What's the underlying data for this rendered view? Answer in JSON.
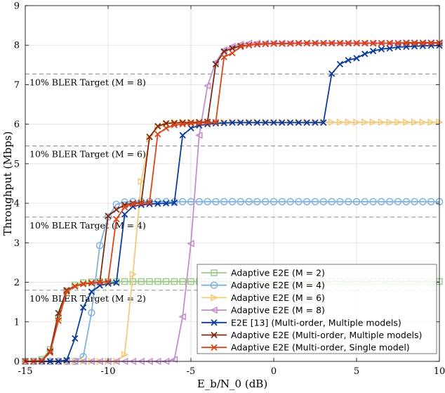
{
  "chart_data": {
    "type": "line",
    "xlabel": "E_b/N_0 (dB)",
    "ylabel": "Throughput (Mbps)",
    "xlim": [
      -15,
      10
    ],
    "ylim": [
      0,
      9
    ],
    "xticks": [
      -15,
      -10,
      -5,
      0,
      5,
      10
    ],
    "yticks": [
      0,
      1,
      2,
      3,
      4,
      5,
      6,
      7,
      8,
      9
    ],
    "xtick_labels": [
      "-15",
      "-10",
      "-5",
      "0",
      "5",
      "10"
    ],
    "ytick_labels": [
      "0",
      "1",
      "2",
      "3",
      "4",
      "5",
      "6",
      "7",
      "8",
      "9"
    ],
    "grid": true,
    "legend_position": "bottom-right",
    "bler_targets": [
      {
        "label": "10% BLER Target (M = 2)",
        "y": 1.8
      },
      {
        "label": "10% BLER Target (M = 4)",
        "y": 3.65
      },
      {
        "label": "10% BLER Target (M = 6)",
        "y": 5.45
      },
      {
        "label": "10% BLER Target (M = 8)",
        "y": 7.27
      }
    ],
    "series": [
      {
        "name": "Adaptive E2E (M = 2)",
        "color": "#9dca86",
        "marker": "square",
        "x": [
          -15,
          -14.5,
          -14,
          -13.5,
          -13,
          -12.5,
          -12,
          -11.5,
          -11,
          -10.5,
          -10,
          -9.5,
          -9,
          -8.5,
          -8,
          -7.5,
          -7,
          -6.5,
          -6,
          -5.5,
          -5,
          -4.5,
          -4,
          -3.5,
          -3,
          -2.5,
          -2,
          -1.5,
          -1,
          -0.5,
          0,
          0.5,
          1,
          1.5,
          2,
          2.5,
          3,
          3.5,
          4,
          4.5,
          5,
          5.5,
          6,
          6.5,
          7,
          7.5,
          8,
          8.5,
          9,
          9.5,
          10
        ],
        "y": [
          0,
          0,
          0.05,
          0.3,
          1.1,
          1.78,
          1.93,
          1.99,
          2.01,
          2.02,
          2.02,
          2.02,
          2.02,
          2.02,
          2.02,
          2.02,
          2.02,
          2.02,
          2.02,
          2.02,
          2.02,
          2.02,
          2.02,
          2.02,
          2.02,
          2.02,
          2.02,
          2.02,
          2.02,
          2.02,
          2.02,
          2.02,
          2.02,
          2.02,
          2.02,
          2.02,
          2.02,
          2.02,
          2.02,
          2.02,
          2.02,
          2.02,
          2.02,
          2.02,
          2.02,
          2.02,
          2.02,
          2.02,
          2.02,
          2.02,
          2.02
        ]
      },
      {
        "name": "Adaptive E2E (M = 4)",
        "color": "#7fb2e0",
        "marker": "circle",
        "x": [
          -15,
          -14.5,
          -14,
          -13.5,
          -13,
          -12.5,
          -12,
          -11.5,
          -11,
          -10.5,
          -10,
          -9.5,
          -9,
          -8.5,
          -8,
          -7.5,
          -7,
          -6.5,
          -6,
          -5.5,
          -5,
          -4.5,
          -4,
          -3.5,
          -3,
          -2.5,
          -2,
          -1.5,
          -1,
          -0.5,
          0,
          0.5,
          1,
          1.5,
          2,
          2.5,
          3,
          3.5,
          4,
          4.5,
          5,
          5.5,
          6,
          6.5,
          7,
          7.5,
          8,
          8.5,
          9,
          9.5,
          10
        ],
        "y": [
          0,
          0,
          0,
          0,
          0,
          0,
          0,
          0.12,
          1.23,
          2.93,
          3.65,
          3.97,
          4.03,
          4.04,
          4.04,
          4.04,
          4.04,
          4.04,
          4.04,
          4.04,
          4.04,
          4.04,
          4.04,
          4.04,
          4.04,
          4.04,
          4.04,
          4.04,
          4.04,
          4.04,
          4.04,
          4.04,
          4.04,
          4.04,
          4.04,
          4.04,
          4.04,
          4.04,
          4.04,
          4.04,
          4.04,
          4.04,
          4.04,
          4.04,
          4.04,
          4.04,
          4.04,
          4.04,
          4.04,
          4.04,
          4.04
        ]
      },
      {
        "name": "Adaptive E2E (M = 6)",
        "color": "#f6c97a",
        "marker": "triangle-right",
        "x": [
          -15,
          -14.5,
          -14,
          -13.5,
          -13,
          -12.5,
          -12,
          -11.5,
          -11,
          -10.5,
          -10,
          -9.5,
          -9,
          -8.5,
          -8,
          -7.5,
          -7,
          -6.5,
          -6,
          -5.5,
          -5,
          -4.5,
          -4,
          -3.5,
          -3,
          -2.5,
          -2,
          -1.5,
          -1,
          -0.5,
          0,
          0.5,
          1,
          1.5,
          2,
          2.5,
          3,
          3.5,
          4,
          4.5,
          5,
          5.5,
          6,
          6.5,
          7,
          7.5,
          8,
          8.5,
          9,
          9.5,
          10
        ],
        "y": [
          0,
          0,
          0,
          0,
          0,
          0,
          0,
          0,
          0,
          0,
          0,
          0,
          0.17,
          2.2,
          4.55,
          5.62,
          5.93,
          6.02,
          6.05,
          6.05,
          6.05,
          6.05,
          6.05,
          6.05,
          6.05,
          6.05,
          6.05,
          6.05,
          6.05,
          6.05,
          6.05,
          6.05,
          6.05,
          6.05,
          6.05,
          6.05,
          6.05,
          6.05,
          6.05,
          6.05,
          6.05,
          6.05,
          6.05,
          6.05,
          6.05,
          6.05,
          6.05,
          6.05,
          6.05,
          6.05,
          6.05
        ]
      },
      {
        "name": "Adaptive E2E (M = 8)",
        "color": "#c38ec9",
        "marker": "triangle-left",
        "x": [
          -15,
          -14.5,
          -14,
          -13.5,
          -13,
          -12.5,
          -12,
          -11.5,
          -11,
          -10.5,
          -10,
          -9.5,
          -9,
          -8.5,
          -8,
          -7.5,
          -7,
          -6.5,
          -6,
          -5.5,
          -5,
          -4.5,
          -4,
          -3.5,
          -3,
          -2.5,
          -2,
          -1.5,
          -1,
          -0.5,
          0,
          0.5,
          1,
          1.5,
          2,
          2.5,
          3,
          3.5,
          4,
          4.5,
          5,
          5.5,
          6,
          6.5,
          7,
          7.5,
          8,
          8.5,
          9,
          9.5,
          10
        ],
        "y": [
          0,
          0,
          0,
          0,
          0,
          0,
          0,
          0,
          0,
          0,
          0,
          0,
          0,
          0,
          0,
          0,
          0,
          0,
          0.05,
          1.13,
          2.98,
          5.72,
          6.97,
          7.57,
          7.88,
          7.97,
          8.02,
          8.05,
          8.05,
          8.05,
          8.05,
          8.05,
          8.05,
          8.05,
          8.05,
          8.05,
          8.05,
          8.05,
          8.05,
          8.05,
          8.05,
          8.05,
          8.05,
          8.05,
          8.05,
          8.05,
          8.05,
          8.05,
          8.05,
          8.05,
          8.05
        ]
      },
      {
        "name": "E2E [13] (Multi-order, Multiple models)",
        "color": "#0b3c9b",
        "marker": "x",
        "x": [
          -15,
          -14.5,
          -14,
          -13.5,
          -13,
          -12.5,
          -12,
          -11.5,
          -11,
          -10.5,
          -10,
          -9.5,
          -9,
          -8.5,
          -8,
          -7.5,
          -7,
          -6.5,
          -6,
          -5.5,
          -5,
          -4.5,
          -4,
          -3.5,
          -3,
          -2.5,
          -2,
          -1.5,
          -1,
          -0.5,
          0,
          0.5,
          1,
          1.5,
          2,
          2.5,
          3,
          3.5,
          4,
          4.5,
          5,
          5.5,
          6,
          6.5,
          7,
          7.5,
          8,
          8.5,
          9,
          9.5,
          10
        ],
        "y": [
          0,
          0,
          0,
          0,
          0,
          0.03,
          0.58,
          1.36,
          1.76,
          1.92,
          1.97,
          1.99,
          3.72,
          3.92,
          3.96,
          3.98,
          3.99,
          4.0,
          4.01,
          5.72,
          5.9,
          5.97,
          6.0,
          6.02,
          6.03,
          6.04,
          6.04,
          6.04,
          6.04,
          6.04,
          6.04,
          6.04,
          6.04,
          6.04,
          6.04,
          6.04,
          6.04,
          7.28,
          7.52,
          7.62,
          7.67,
          7.78,
          7.85,
          7.9,
          7.92,
          7.95,
          7.96,
          7.97,
          7.98,
          7.99,
          7.99
        ]
      },
      {
        "name": "Adaptive E2E (Multi-order, Multiple models)",
        "color": "#7b2b12",
        "marker": "x",
        "x": [
          -15,
          -14.5,
          -14,
          -13.5,
          -13,
          -12.5,
          -12,
          -11.5,
          -11,
          -10.5,
          -10,
          -9.5,
          -9,
          -8.5,
          -8,
          -7.5,
          -7,
          -6.5,
          -6,
          -5.5,
          -5,
          -4.5,
          -4,
          -3.5,
          -3,
          -2.5,
          -2,
          -1.5,
          -1,
          -0.5,
          0,
          0.5,
          1,
          1.5,
          2,
          2.5,
          3,
          3.5,
          4,
          4.5,
          5,
          5.5,
          6,
          6.5,
          7,
          7.5,
          8,
          8.5,
          9,
          9.5,
          10
        ],
        "y": [
          0,
          0,
          0.02,
          0.25,
          1.22,
          1.8,
          1.9,
          1.96,
          1.98,
          2.0,
          3.68,
          3.84,
          3.96,
          4.0,
          4.01,
          5.68,
          5.95,
          6.02,
          6.03,
          6.04,
          6.04,
          6.05,
          6.06,
          7.52,
          7.84,
          7.92,
          7.98,
          8.0,
          8.02,
          8.03,
          8.04,
          8.04,
          8.04,
          8.05,
          8.05,
          8.05,
          8.05,
          8.05,
          8.05,
          8.05,
          8.05,
          8.05,
          8.05,
          8.05,
          8.05,
          8.05,
          8.06,
          8.06,
          8.06,
          8.06,
          8.06
        ]
      },
      {
        "name": "Adaptive E2E (Multi-order, Single model)",
        "color": "#d9441c",
        "marker": "x",
        "x": [
          -15,
          -14.5,
          -14,
          -13.5,
          -13,
          -12.5,
          -12,
          -11.5,
          -11,
          -10.5,
          -10,
          -9.5,
          -9,
          -8.5,
          -8,
          -7.5,
          -7,
          -6.5,
          -6,
          -5.5,
          -5,
          -4.5,
          -4,
          -3.5,
          -3,
          -2.5,
          -2,
          -1.5,
          -1,
          -0.5,
          0,
          0.5,
          1,
          1.5,
          2,
          2.5,
          3,
          3.5,
          4,
          4.5,
          5,
          5.5,
          6,
          6.5,
          7,
          7.5,
          8,
          8.5,
          9,
          9.5,
          10
        ],
        "y": [
          0,
          0,
          0.02,
          0.22,
          1.03,
          1.77,
          1.9,
          1.96,
          1.99,
          2.0,
          2.01,
          3.6,
          3.9,
          3.98,
          4.0,
          4.02,
          5.75,
          5.9,
          5.98,
          6.0,
          6.02,
          6.03,
          6.04,
          6.05,
          7.7,
          7.8,
          7.96,
          8.0,
          8.02,
          8.03,
          8.04,
          8.04,
          8.04,
          8.05,
          8.05,
          8.05,
          8.05,
          8.05,
          8.05,
          8.05,
          8.05,
          8.05,
          8.05,
          8.05,
          8.05,
          8.05,
          8.05,
          8.05,
          8.05,
          8.05,
          8.05
        ]
      }
    ]
  }
}
